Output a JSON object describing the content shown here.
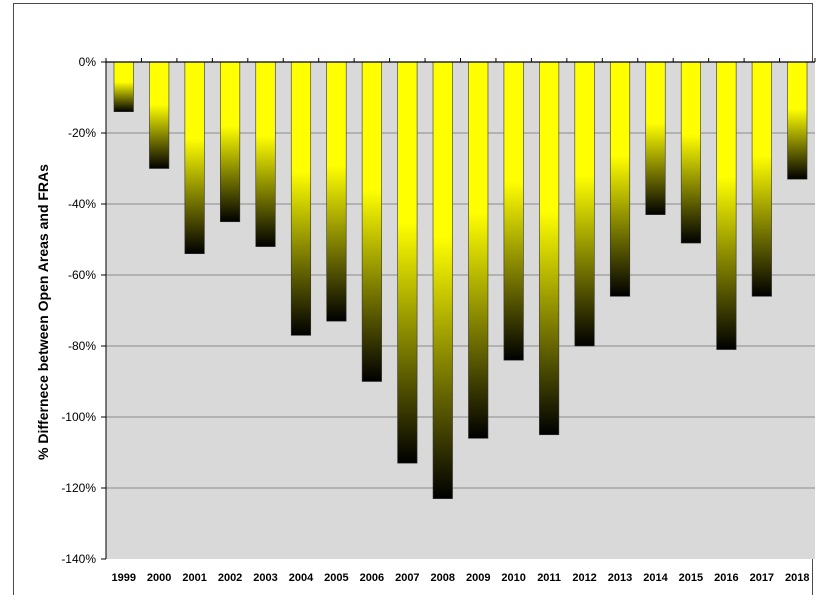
{
  "chart_data": {
    "type": "bar",
    "title": "",
    "xlabel": "",
    "ylabel": "% Differnece between Open Areas and FRAs",
    "categories": [
      "1999",
      "2000",
      "2001",
      "2002",
      "2003",
      "2004",
      "2005",
      "2006",
      "2007",
      "2008",
      "2009",
      "2010",
      "2011",
      "2012",
      "2013",
      "2014",
      "2015",
      "2016",
      "2017",
      "2018"
    ],
    "values": [
      -14,
      -30,
      -54,
      -45,
      -52,
      -77,
      -73,
      -90,
      -113,
      -123,
      -106,
      -84,
      -105,
      -80,
      -66,
      -43,
      -51,
      -81,
      -66,
      -33
    ],
    "ylim": [
      -140,
      0
    ],
    "yticks": [
      0,
      -20,
      -40,
      -60,
      -80,
      -100,
      -120,
      -140
    ],
    "ytick_labels": [
      "0%",
      "-20%",
      "-40%",
      "-60%",
      "-80%",
      "-100%",
      "-120%",
      "-140%"
    ],
    "grid": true,
    "legend": "none",
    "colors": {
      "plot_background": "#d9d9d9",
      "bar_top": "#ffff00",
      "bar_bottom": "#000000",
      "gridline": "#8c8c8c"
    }
  }
}
